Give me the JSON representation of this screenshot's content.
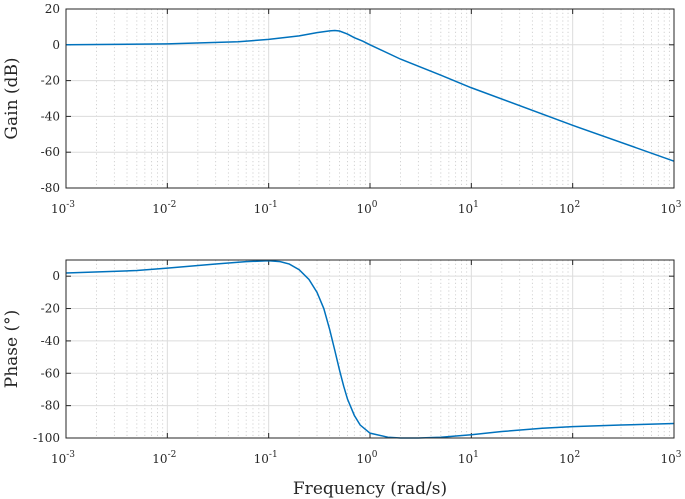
{
  "chart_data": [
    {
      "type": "line",
      "title": "",
      "xlabel": "",
      "ylabel": "Gain (dB)",
      "xscale": "log",
      "xlim": [
        0.001,
        1000
      ],
      "ylim": [
        -80,
        20
      ],
      "yticks": [
        "20",
        "0",
        "-20",
        "-40",
        "-60",
        "-80"
      ],
      "xticks": [
        {
          "base": "10",
          "exp": "-3"
        },
        {
          "base": "10",
          "exp": "-2"
        },
        {
          "base": "10",
          "exp": "-1"
        },
        {
          "base": "10",
          "exp": "0"
        },
        {
          "base": "10",
          "exp": "1"
        },
        {
          "base": "10",
          "exp": "2"
        },
        {
          "base": "10",
          "exp": "3"
        }
      ],
      "grid": true,
      "color": "#0072BD",
      "series": [
        {
          "x": [
            0.001,
            0.01,
            0.05,
            0.1,
            0.2,
            0.3,
            0.4,
            0.45,
            0.5,
            0.6,
            0.7,
            0.85,
            1,
            2,
            5,
            10,
            100,
            1000
          ],
          "y": [
            0,
            0.5,
            1.7,
            3,
            5,
            6.8,
            7.8,
            8,
            7.7,
            6,
            4,
            2,
            0,
            -8,
            -17,
            -24,
            -45,
            -65
          ]
        }
      ]
    },
    {
      "type": "line",
      "title": "",
      "xlabel": "Frequency (rad/s)",
      "ylabel": "Phase (°)",
      "xscale": "log",
      "xlim": [
        0.001,
        1000
      ],
      "ylim": [
        -100,
        10
      ],
      "yticks": [
        "0",
        "-20",
        "-40",
        "-60",
        "-80",
        "-100"
      ],
      "xticks": [
        {
          "base": "10",
          "exp": "-3"
        },
        {
          "base": "10",
          "exp": "-2"
        },
        {
          "base": "10",
          "exp": "-1"
        },
        {
          "base": "10",
          "exp": "0"
        },
        {
          "base": "10",
          "exp": "1"
        },
        {
          "base": "10",
          "exp": "2"
        },
        {
          "base": "10",
          "exp": "3"
        }
      ],
      "grid": true,
      "color": "#0072BD",
      "series": [
        {
          "x": [
            0.001,
            0.005,
            0.01,
            0.03,
            0.06,
            0.1,
            0.13,
            0.16,
            0.2,
            0.25,
            0.3,
            0.35,
            0.4,
            0.45,
            0.5,
            0.55,
            0.6,
            0.7,
            0.8,
            1,
            1.5,
            2,
            3,
            5,
            10,
            20,
            50,
            100,
            300,
            1000
          ],
          "y": [
            2,
            3.5,
            5,
            7.5,
            9,
            9.5,
            9,
            7.5,
            4,
            -2,
            -10,
            -20,
            -33,
            -46,
            -58,
            -68,
            -76,
            -86,
            -92,
            -97,
            -99.5,
            -100,
            -100,
            -99.5,
            -98,
            -96,
            -94,
            -93,
            -92,
            -91
          ]
        }
      ]
    }
  ]
}
